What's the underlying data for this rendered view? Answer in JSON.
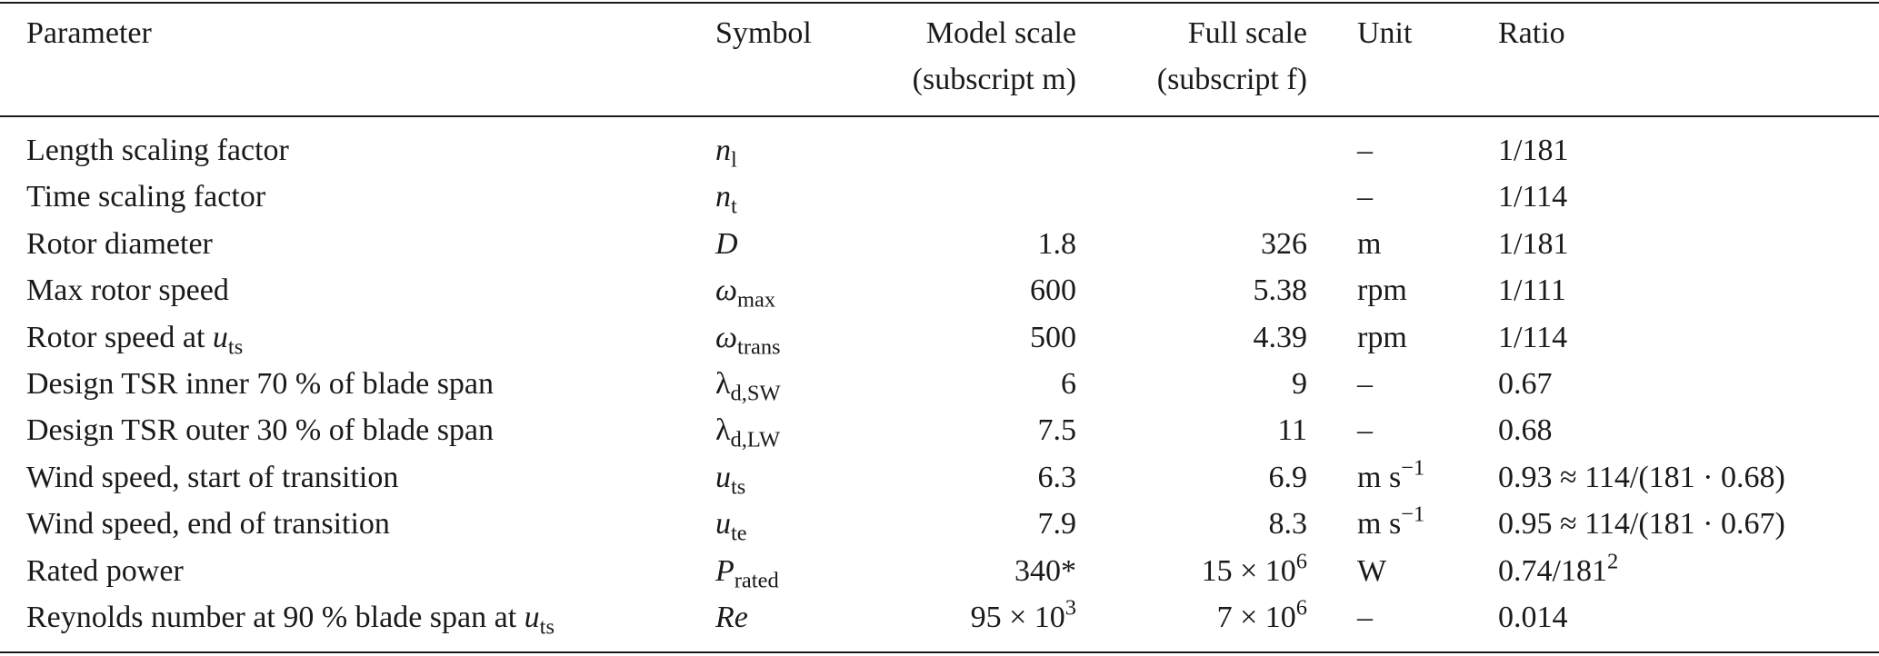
{
  "table": {
    "header": [
      [
        "Parameter"
      ],
      [
        "Symbol"
      ],
      [
        "Model scale",
        "(subscript m)"
      ],
      [
        "Full scale",
        "(subscript f)"
      ],
      [
        "Unit"
      ],
      [
        "Ratio"
      ]
    ],
    "rows": [
      [
        [
          {
            "text": "Length scaling factor"
          }
        ],
        [
          {
            "text": "n",
            "i": true
          },
          {
            "text": "l",
            "sub": true
          }
        ],
        null,
        null,
        [
          {
            "text": "–"
          }
        ],
        [
          {
            "text": "1/181"
          }
        ]
      ],
      [
        [
          {
            "text": "Time scaling factor"
          }
        ],
        [
          {
            "text": "n",
            "i": true
          },
          {
            "text": "t",
            "sub": true
          }
        ],
        null,
        null,
        [
          {
            "text": "–"
          }
        ],
        [
          {
            "text": "1/114"
          }
        ]
      ],
      [
        [
          {
            "text": "Rotor diameter"
          }
        ],
        [
          {
            "text": "D",
            "i": true
          }
        ],
        [
          {
            "text": "1.8"
          }
        ],
        [
          {
            "text": "326"
          }
        ],
        [
          {
            "text": "m"
          }
        ],
        [
          {
            "text": "1/181"
          }
        ]
      ],
      [
        [
          {
            "text": "Max rotor speed"
          }
        ],
        [
          {
            "text": "ω",
            "i": true
          },
          {
            "text": "max",
            "sub": true
          }
        ],
        [
          {
            "text": "600"
          }
        ],
        [
          {
            "text": "5.38"
          }
        ],
        [
          {
            "text": "rpm"
          }
        ],
        [
          {
            "text": "1/111"
          }
        ]
      ],
      [
        [
          {
            "text": "Rotor speed at "
          },
          {
            "text": "u",
            "i": true
          },
          {
            "text": "ts",
            "sub": true
          }
        ],
        [
          {
            "text": "ω",
            "i": true
          },
          {
            "text": "trans",
            "sub": true
          }
        ],
        [
          {
            "text": "500"
          }
        ],
        [
          {
            "text": "4.39"
          }
        ],
        [
          {
            "text": "rpm"
          }
        ],
        [
          {
            "text": "1/114"
          }
        ]
      ],
      [
        [
          {
            "text": "Design TSR inner 70 % of blade span"
          }
        ],
        [
          {
            "text": "λ"
          },
          {
            "text": "d,SW",
            "sub": true
          }
        ],
        [
          {
            "text": "6"
          }
        ],
        [
          {
            "text": "9"
          }
        ],
        [
          {
            "text": "–"
          }
        ],
        [
          {
            "text": "0.67"
          }
        ]
      ],
      [
        [
          {
            "text": "Design TSR outer 30 % of blade span"
          }
        ],
        [
          {
            "text": "λ"
          },
          {
            "text": "d,LW",
            "sub": true
          }
        ],
        [
          {
            "text": "7.5"
          }
        ],
        [
          {
            "text": "11"
          }
        ],
        [
          {
            "text": "–"
          }
        ],
        [
          {
            "text": "0.68"
          }
        ]
      ],
      [
        [
          {
            "text": "Wind speed, start of transition"
          }
        ],
        [
          {
            "text": "u",
            "i": true
          },
          {
            "text": "ts",
            "sub": true
          }
        ],
        [
          {
            "text": "6.3"
          }
        ],
        [
          {
            "text": "6.9"
          }
        ],
        [
          {
            "text": "m s"
          },
          {
            "text": "−1",
            "sup": true
          }
        ],
        [
          {
            "text": "0.93 ≈ 114/(181 · 0.68)"
          }
        ]
      ],
      [
        [
          {
            "text": "Wind speed, end of transition"
          }
        ],
        [
          {
            "text": "u",
            "i": true
          },
          {
            "text": "te",
            "sub": true
          }
        ],
        [
          {
            "text": "7.9"
          }
        ],
        [
          {
            "text": "8.3"
          }
        ],
        [
          {
            "text": "m s"
          },
          {
            "text": "−1",
            "sup": true
          }
        ],
        [
          {
            "text": "0.95 ≈ 114/(181 · 0.67)"
          }
        ]
      ],
      [
        [
          {
            "text": "Rated power"
          }
        ],
        [
          {
            "text": "P",
            "i": true
          },
          {
            "text": "rated",
            "sub": true
          }
        ],
        [
          {
            "text": "340*"
          }
        ],
        [
          {
            "text": "15 × 10"
          },
          {
            "text": "6",
            "sup": true
          }
        ],
        [
          {
            "text": "W"
          }
        ],
        [
          {
            "text": "0.74/181"
          },
          {
            "text": "2",
            "sup": true
          }
        ]
      ],
      [
        [
          {
            "text": "Reynolds number at 90 % blade span at "
          },
          {
            "text": "u",
            "i": true
          },
          {
            "text": "ts",
            "sub": true
          }
        ],
        [
          {
            "text": "Re",
            "i": true
          }
        ],
        [
          {
            "text": "95 × 10"
          },
          {
            "text": "3",
            "sup": true
          }
        ],
        [
          {
            "text": "7 × 10"
          },
          {
            "text": "6",
            "sup": true
          }
        ],
        [
          {
            "text": "–"
          }
        ],
        [
          {
            "text": "0.014"
          }
        ]
      ]
    ]
  }
}
